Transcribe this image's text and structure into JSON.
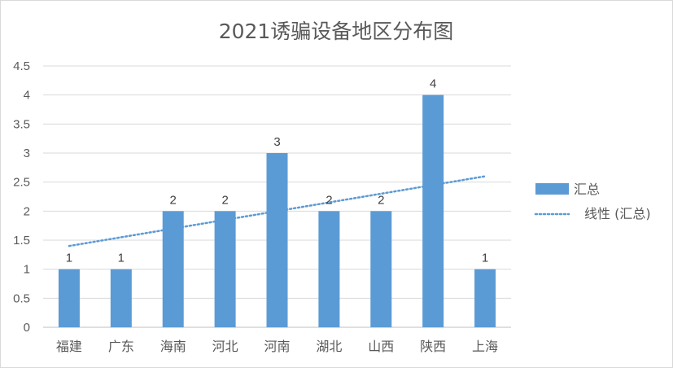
{
  "chart_data": {
    "type": "bar",
    "title": "2021诱骗设备地区分布图",
    "categories": [
      "福建",
      "广东",
      "海南",
      "河北",
      "河南",
      "湖北",
      "山西",
      "陕西",
      "上海"
    ],
    "series": [
      {
        "name": "汇总",
        "values": [
          1,
          1,
          2,
          2,
          3,
          2,
          2,
          4,
          1
        ],
        "color": "#5b9bd5"
      }
    ],
    "trendline": {
      "name": "线性 (汇总)",
      "type": "linear",
      "color": "#5b9bd5",
      "style": "dotted"
    },
    "y_ticks": [
      "0",
      "0.5",
      "1",
      "1.5",
      "2",
      "2.5",
      "3",
      "3.5",
      "4",
      "4.5"
    ],
    "ylim": [
      0,
      4.5
    ],
    "grid": true,
    "data_labels": true,
    "legend_position": "right"
  }
}
